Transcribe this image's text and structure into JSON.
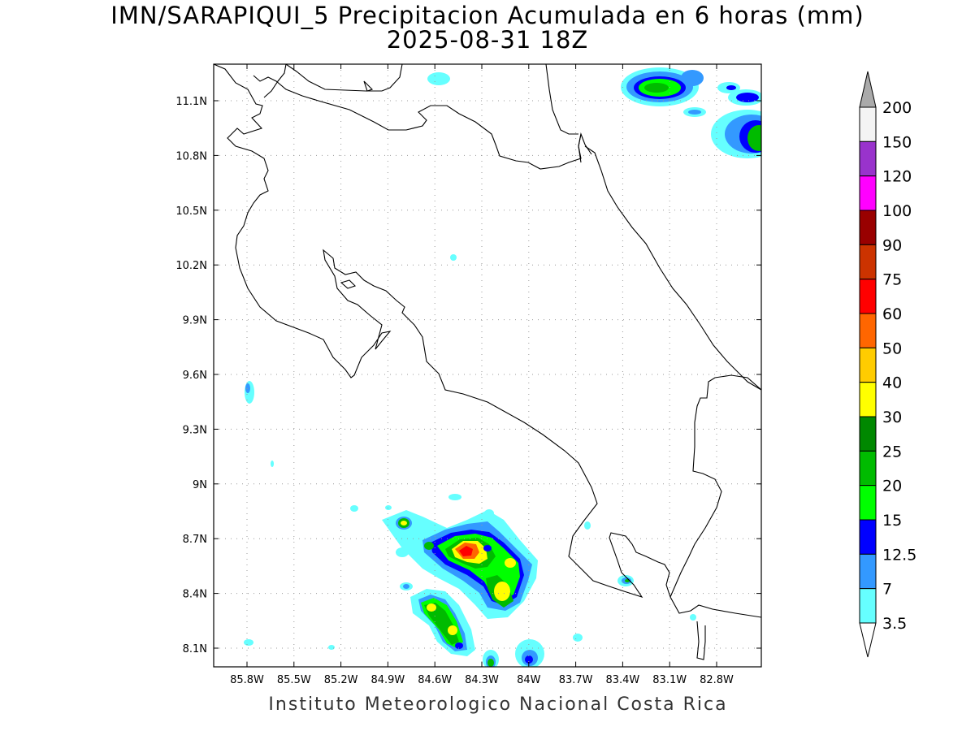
{
  "title": {
    "line1": "IMN/SARAPIQUI_5 Precipitacion Acumulada en 6 horas (mm)",
    "line2": "2025-08-31 18Z"
  },
  "credit": "Instituto Meteorologico Nacional Costa Rica",
  "axes": {
    "lat_ticks": [
      "11.1N",
      "10.8N",
      "10.5N",
      "10.2N",
      "9.9N",
      "9.6N",
      "9.3N",
      "9N",
      "8.7N",
      "8.4N",
      "8.1N"
    ],
    "lon_ticks": [
      "85.8W",
      "85.5W",
      "85.2W",
      "84.9W",
      "84.6W",
      "84.3W",
      "84W",
      "83.7W",
      "83.4W",
      "83.1W",
      "82.8W"
    ]
  },
  "legend": {
    "labels": [
      "200",
      "150",
      "120",
      "100",
      "90",
      "75",
      "60",
      "50",
      "40",
      "30",
      "25",
      "20",
      "15",
      "12.5",
      "7",
      "3.5"
    ],
    "colors": [
      "#f4f4f4",
      "#9933cc",
      "#ff00ff",
      "#990000",
      "#cc3300",
      "#ff0000",
      "#ff6600",
      "#ffcc00",
      "#ffff00",
      "#008800",
      "#00bb00",
      "#00ff00",
      "#0000ff",
      "#3399ff",
      "#66ffff"
    ],
    "arrow_top_color": "#aaaaaa",
    "arrow_bottom_color": "#ffffff"
  }
}
